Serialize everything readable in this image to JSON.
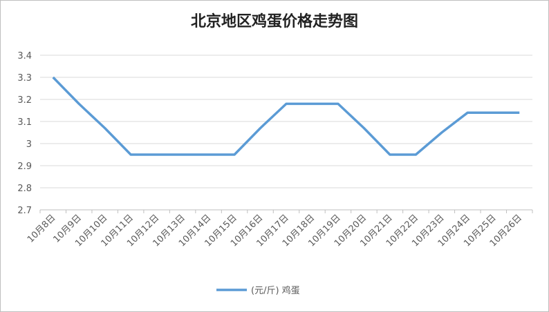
{
  "chart_data": {
    "type": "line",
    "title": "北京地区鸡蛋价格走势图",
    "categories": [
      "10月8日",
      "10月9日",
      "10月10日",
      "10月11日",
      "10月12日",
      "10月13日",
      "10月14日",
      "10月15日",
      "10月16日",
      "10月17日",
      "10月18日",
      "10月19日",
      "10月20日",
      "10月21日",
      "10月22日",
      "10月23日",
      "10月24日",
      "10月25日",
      "10月26日"
    ],
    "series": [
      {
        "name": "(元/斤) 鸡蛋",
        "color": "#5b9bd5",
        "values": [
          3.3,
          3.18,
          3.07,
          2.95,
          2.95,
          2.95,
          2.95,
          2.95,
          3.07,
          3.18,
          3.18,
          3.18,
          3.07,
          2.95,
          2.95,
          3.05,
          3.14,
          3.14,
          3.14
        ]
      }
    ],
    "ylim": [
      2.7,
      3.4
    ],
    "yticks": [
      2.7,
      2.8,
      2.9,
      3,
      3.1,
      3.2,
      3.3,
      3.4
    ],
    "grid": true,
    "legend": "bottom"
  }
}
